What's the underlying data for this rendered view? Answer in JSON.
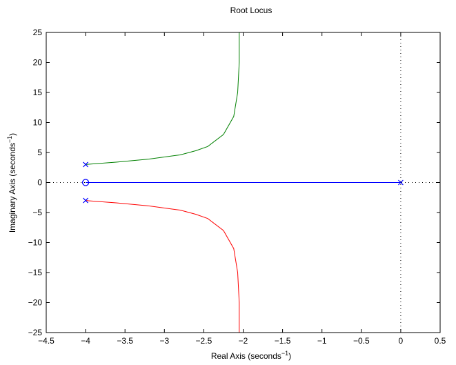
{
  "chart_data": {
    "type": "line",
    "title": "Root Locus",
    "xlabel": {
      "text": "Real Axis (seconds",
      "sup": "−1",
      "suffix": ")"
    },
    "ylabel": {
      "text": "Imaginary Axis (seconds",
      "sup": "−1",
      "suffix": ")"
    },
    "xlim": [
      -4.5,
      0.5
    ],
    "ylim": [
      -25,
      25
    ],
    "xticks": [
      -4.5,
      -4,
      -3.5,
      -3,
      -2.5,
      -2,
      -1.5,
      -1,
      -0.5,
      0,
      0.5
    ],
    "xtick_labels": [
      "−4.5",
      "−4",
      "−3.5",
      "−3",
      "−2.5",
      "−2",
      "−1.5",
      "−1",
      "−0.5",
      "0",
      "0.5"
    ],
    "yticks": [
      -25,
      -20,
      -15,
      -10,
      -5,
      0,
      5,
      10,
      15,
      20,
      25
    ],
    "ytick_labels": [
      "−25",
      "−20",
      "−15",
      "−10",
      "−5",
      "0",
      "5",
      "10",
      "15",
      "20",
      "25"
    ],
    "grid": false,
    "series": [
      {
        "color": "#0000ff",
        "x": [
          -4,
          -3,
          -2,
          -1,
          0
        ],
        "y": [
          0,
          0,
          0,
          0,
          0
        ]
      },
      {
        "color": "#008000",
        "x": [
          -4,
          -3.6,
          -3.2,
          -2.8,
          -2.6,
          -2.45,
          -2.25,
          -2.12,
          -2.07,
          -2.05,
          -2.05
        ],
        "y": [
          3,
          3.4,
          3.9,
          4.6,
          5.3,
          6,
          8,
          11,
          15,
          20,
          25
        ]
      },
      {
        "color": "#ff0000",
        "x": [
          -4,
          -3.6,
          -3.2,
          -2.8,
          -2.6,
          -2.45,
          -2.25,
          -2.12,
          -2.07,
          -2.05,
          -2.05
        ],
        "y": [
          -3,
          -3.4,
          -3.9,
          -4.6,
          -5.3,
          -6,
          -8,
          -11,
          -15,
          -20,
          -25
        ]
      }
    ],
    "poles": [
      {
        "x": -4,
        "y": 3
      },
      {
        "x": -4,
        "y": -3
      },
      {
        "x": 0,
        "y": 0
      }
    ],
    "zeros": [
      {
        "x": -4,
        "y": 0
      }
    ],
    "marker_color": "#0000ff"
  }
}
